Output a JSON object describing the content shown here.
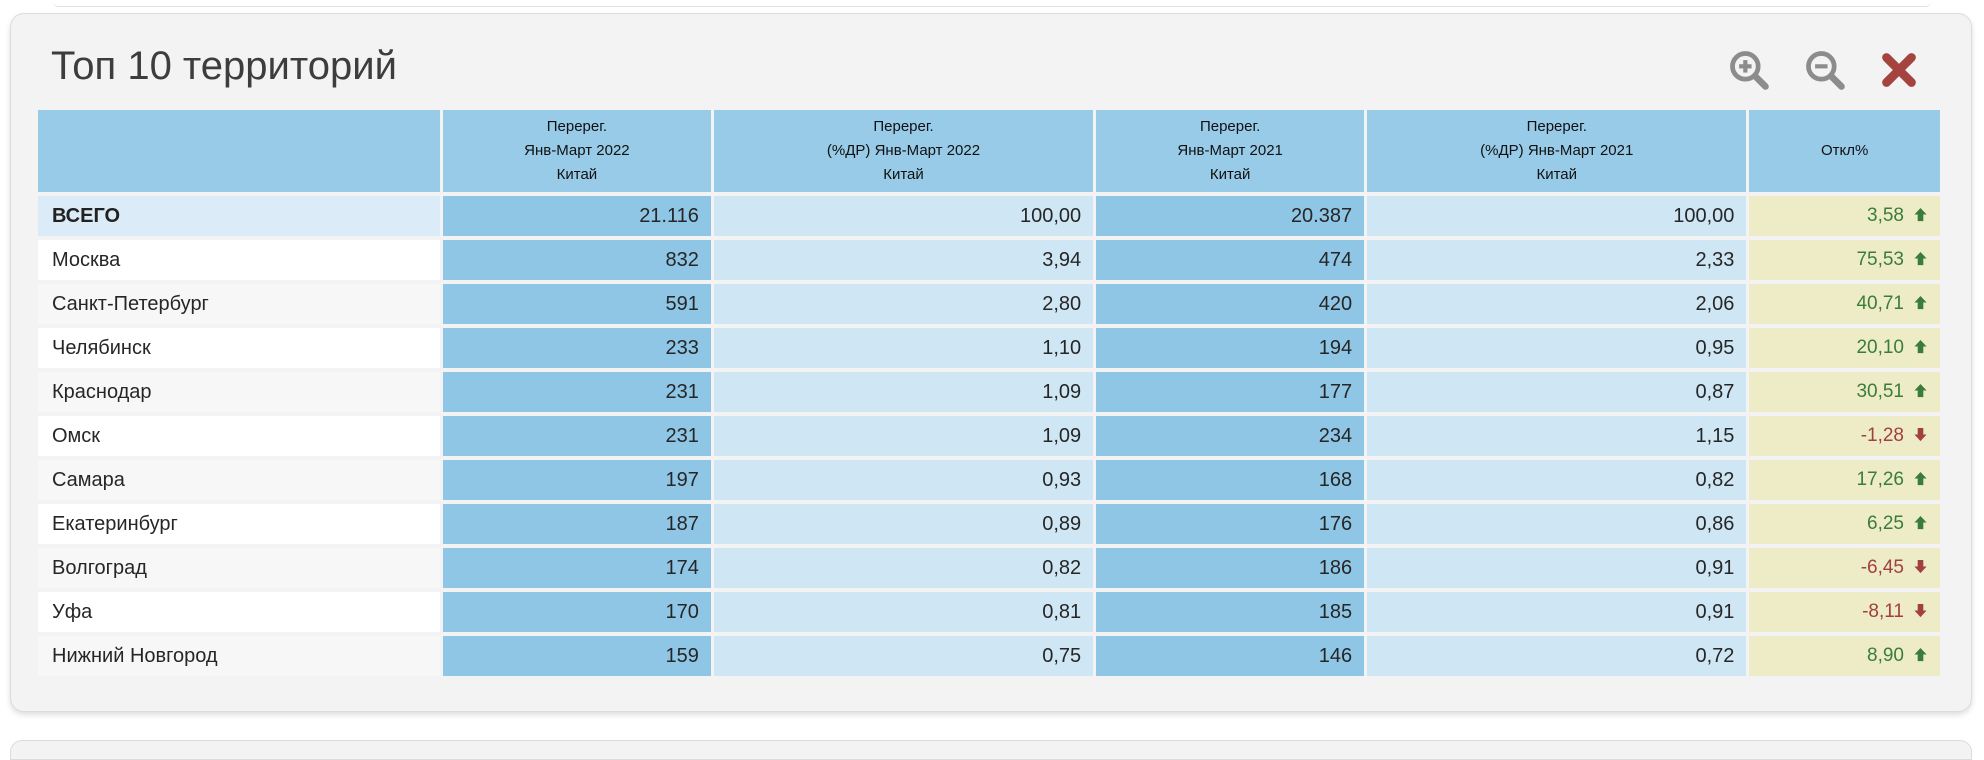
{
  "panel": {
    "title": "Топ 10 территорий"
  },
  "colors": {
    "header_blue": "#97cbe8",
    "count_blue": "#8fc6e6",
    "percent_blue": "#cfe6f4",
    "deviation_yellow": "#eeecc6",
    "total_row_blue": "#dcebf8",
    "up_green": "#3a7d3a",
    "down_red": "#a04040",
    "close_red": "#a5433e",
    "icon_gray": "#8c8c8c"
  },
  "table": {
    "columns": [
      {
        "label": ""
      },
      {
        "label": "Перерег.\nЯнв-Март 2022\nКитай"
      },
      {
        "label": "Перерег.\n(%ДР) Янв-Март 2022\nКитай"
      },
      {
        "label": "Перерег.\nЯнв-Март 2021\nКитай"
      },
      {
        "label": "Перерег.\n(%ДР) Янв-Март 2021\nКитай"
      },
      {
        "label": "Откл%"
      }
    ],
    "rows": [
      {
        "name": "ВСЕГО",
        "total": true,
        "reg_2022": "21.116",
        "pct_2022": "100,00",
        "reg_2021": "20.387",
        "pct_2021": "100,00",
        "deviation": "3,58",
        "trend": "up"
      },
      {
        "name": "Москва",
        "reg_2022": "832",
        "pct_2022": "3,94",
        "reg_2021": "474",
        "pct_2021": "2,33",
        "deviation": "75,53",
        "trend": "up"
      },
      {
        "name": "Санкт-Петербург",
        "reg_2022": "591",
        "pct_2022": "2,80",
        "reg_2021": "420",
        "pct_2021": "2,06",
        "deviation": "40,71",
        "trend": "up"
      },
      {
        "name": "Челябинск",
        "reg_2022": "233",
        "pct_2022": "1,10",
        "reg_2021": "194",
        "pct_2021": "0,95",
        "deviation": "20,10",
        "trend": "up"
      },
      {
        "name": "Краснодар",
        "reg_2022": "231",
        "pct_2022": "1,09",
        "reg_2021": "177",
        "pct_2021": "0,87",
        "deviation": "30,51",
        "trend": "up"
      },
      {
        "name": "Омск",
        "reg_2022": "231",
        "pct_2022": "1,09",
        "reg_2021": "234",
        "pct_2021": "1,15",
        "deviation": "-1,28",
        "trend": "down"
      },
      {
        "name": "Самара",
        "reg_2022": "197",
        "pct_2022": "0,93",
        "reg_2021": "168",
        "pct_2021": "0,82",
        "deviation": "17,26",
        "trend": "up"
      },
      {
        "name": "Екатеринбург",
        "reg_2022": "187",
        "pct_2022": "0,89",
        "reg_2021": "176",
        "pct_2021": "0,86",
        "deviation": "6,25",
        "trend": "up"
      },
      {
        "name": "Волгоград",
        "reg_2022": "174",
        "pct_2022": "0,82",
        "reg_2021": "186",
        "pct_2021": "0,91",
        "deviation": "-6,45",
        "trend": "down"
      },
      {
        "name": "Уфа",
        "reg_2022": "170",
        "pct_2022": "0,81",
        "reg_2021": "185",
        "pct_2021": "0,91",
        "deviation": "-8,11",
        "trend": "down"
      },
      {
        "name": "Нижний Новгород",
        "reg_2022": "159",
        "pct_2022": "0,75",
        "reg_2021": "146",
        "pct_2021": "0,72",
        "deviation": "8,90",
        "trend": "up"
      }
    ]
  }
}
